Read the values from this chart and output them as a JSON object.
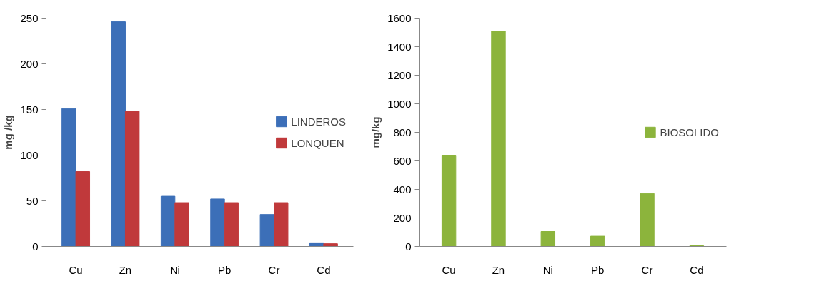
{
  "chart_data": [
    {
      "type": "bar",
      "categories": [
        "Cu",
        "Zn",
        "Ni",
        "Pb",
        "Cr",
        "Cd"
      ],
      "ylabel": "mg /kg",
      "ylim": [
        0,
        250
      ],
      "yticks": [
        0,
        50,
        100,
        150,
        200,
        250
      ],
      "grid": false,
      "legend": "right",
      "series": [
        {
          "name": "LINDEROS",
          "color": "#3c6fb8",
          "values": [
            151,
            246,
            55,
            52,
            35,
            4
          ]
        },
        {
          "name": "LONQUEN",
          "color": "#c0393b",
          "values": [
            82,
            148,
            48,
            48,
            48,
            3
          ]
        }
      ]
    },
    {
      "type": "bar",
      "categories": [
        "Cu",
        "Zn",
        "Ni",
        "Pb",
        "Cr",
        "Cd"
      ],
      "ylabel": "mg/kg",
      "ylim": [
        0,
        1600
      ],
      "yticks": [
        0,
        200,
        400,
        600,
        800,
        1000,
        1200,
        1400,
        1600
      ],
      "grid": false,
      "legend": "right",
      "series": [
        {
          "name": "BIOSOLIDO",
          "color": "#8cb43c",
          "values": [
            635,
            1508,
            105,
            72,
            371,
            5
          ]
        }
      ]
    }
  ]
}
